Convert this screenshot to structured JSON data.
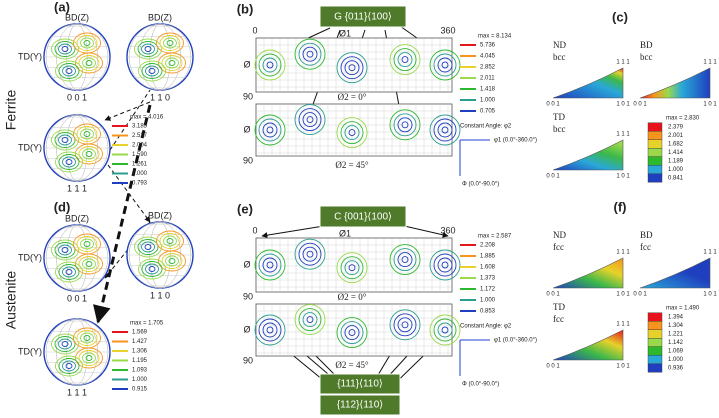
{
  "row_labels": [
    "Ferrite",
    "Austenite"
  ],
  "pole_figures": [
    {
      "label": "(a)",
      "poles": [
        {
          "top": "BD(Z)",
          "left": "TD(Y)",
          "bottom": "0 0 1"
        },
        {
          "top": "BD(Z)",
          "bottom": "1 1 0"
        },
        {
          "left": "TD(Y)",
          "bottom": "1 1 1"
        }
      ],
      "legend": {
        "max": "max = 4.016",
        "levels": [
          "3.185",
          "2.527",
          "2.004",
          "1.590",
          "1.261",
          "1.000",
          "0.793"
        ]
      }
    },
    {
      "label": "(d)",
      "poles": [
        {
          "top": "BD(Z)",
          "left": "TD(Y)",
          "bottom": "0 0 1"
        },
        {
          "top": "BD(Z)",
          "bottom": "1 1 0"
        },
        {
          "left": "TD(Y)",
          "bottom": "1 1 1"
        }
      ],
      "legend": {
        "max": "max = 1.705",
        "levels": [
          "1.569",
          "1.427",
          "1.306",
          "1.195",
          "1.093",
          "1.000",
          "0.915"
        ]
      }
    }
  ],
  "odfs": [
    {
      "label": "(b)",
      "component": "G {011}⟨100⟩",
      "phi1_start": "0",
      "phi1_end": "360",
      "phi1": "Ø1",
      "Phi": "Ø",
      "Phi_end": "90",
      "sections": [
        "Ø2 = 0°",
        "Ø2 = 45°"
      ],
      "legend": {
        "max": "max = 8.134",
        "levels": [
          "5.736",
          "4.045",
          "2.852",
          "2.011",
          "1.418",
          "1.000",
          "0.705"
        ]
      },
      "constant_angle": "Constant Angle: φ2",
      "axis_x": "φ1 (0.0°-360.0°)",
      "axis_y": "Φ (0.0°-90.0°)"
    },
    {
      "label": "(e)",
      "component": "C {001}⟨100⟩",
      "phi1_start": "0",
      "phi1_end": "360",
      "phi1": "Ø1",
      "Phi": "Ø",
      "Phi_end": "90",
      "sections": [
        "Ø2 = 0°",
        "Ø2 = 45°"
      ],
      "legend": {
        "max": "max = 2.587",
        "levels": [
          "2.208",
          "1.885",
          "1.608",
          "1.373",
          "1.172",
          "1.000",
          "0.853"
        ]
      },
      "constant_angle": "Constant Angle: φ2",
      "axis_x": "φ1 (0.0°-360.0°)",
      "axis_y": "Φ (0.0°-90.0°)",
      "extra_components": [
        "{111}⟨110⟩",
        "{112}⟨110⟩"
      ]
    }
  ],
  "ipfs": [
    {
      "label": "(c)",
      "corners": [
        "1 1 1",
        "0 0 1",
        "1 0 1"
      ],
      "figures": [
        {
          "direction": "ND",
          "phase": "bcc"
        },
        {
          "direction": "BD",
          "phase": "bcc"
        },
        {
          "direction": "TD",
          "phase": "bcc"
        }
      ],
      "legend": {
        "max": "max = 2.830",
        "levels": [
          "2.379",
          "2.001",
          "1.682",
          "1.414",
          "1.189",
          "1.000",
          "0.841"
        ]
      }
    },
    {
      "label": "(f)",
      "corners": [
        "1 1 1",
        "0 0 1",
        "1 0 1"
      ],
      "figures": [
        {
          "direction": "ND",
          "phase": "fcc"
        },
        {
          "direction": "BD",
          "phase": "fcc"
        },
        {
          "direction": "TD",
          "phase": "fcc"
        }
      ],
      "legend": {
        "max": "max = 1.490",
        "levels": [
          "1.394",
          "1.304",
          "1.221",
          "1.142",
          "1.069",
          "1.000",
          "0.936"
        ]
      }
    }
  ]
}
